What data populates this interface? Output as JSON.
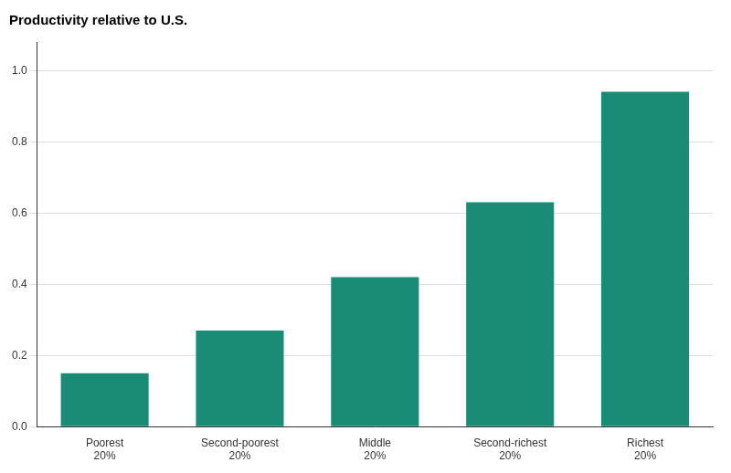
{
  "chart_data": {
    "type": "bar",
    "title": "Productivity relative to U.S.",
    "categories": [
      "Poorest\n20%",
      "Second-poorest\n20%",
      "Middle\n20%",
      "Second-richest\n20%",
      "Richest\n20%"
    ],
    "values": [
      0.15,
      0.27,
      0.42,
      0.63,
      0.94
    ],
    "color": "#1a8c76",
    "ylim": [
      0,
      1.08
    ],
    "yticks": [
      {
        "value": 0,
        "label": "0.0"
      },
      0.2,
      0.4,
      0.6,
      0.8,
      {
        "value": 1,
        "label": "1.0"
      }
    ],
    "grid": true
  }
}
